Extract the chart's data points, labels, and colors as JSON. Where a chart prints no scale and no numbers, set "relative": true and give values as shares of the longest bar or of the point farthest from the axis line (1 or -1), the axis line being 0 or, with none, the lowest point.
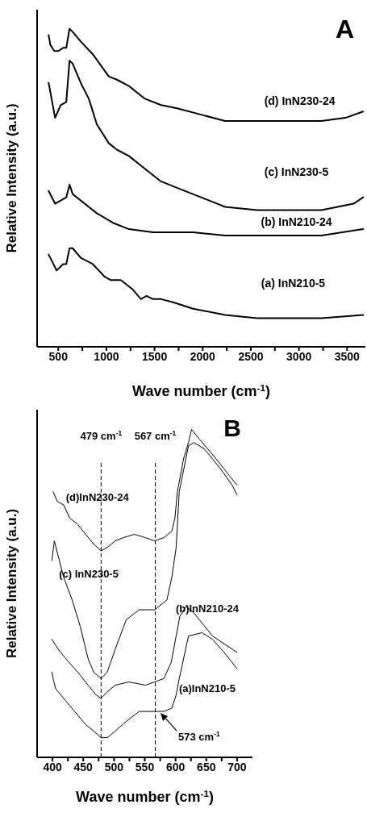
{
  "chart_data": [
    {
      "type": "line",
      "relative": true,
      "xlabel": "Wave number (cm$^{-1}$)",
      "ylabel": "Relative Intensity (a.u.)",
      "annotations": [
        "A"
      ],
      "xlim": [
        280,
        3690
      ],
      "xticks": [
        500,
        {
          "value": 750,
          "label": null
        },
        1000,
        {
          "value": 1250,
          "label": null
        },
        1500,
        {
          "value": 1750,
          "label": null
        },
        2000,
        {
          "value": 2250,
          "label": null
        },
        2500,
        {
          "value": 2750,
          "label": null
        },
        3000,
        {
          "value": 3250,
          "label": null
        },
        3500
      ],
      "series": [
        {
          "name": "(a) InN210-5",
          "color": "#000000",
          "x": [
            400,
            483,
            550,
            583,
            617,
            650,
            733,
            858,
            983,
            1042,
            1150,
            1275,
            1358,
            1417,
            1483,
            1567,
            1692,
            1900,
            2233,
            2567,
            3233,
            3667
          ],
          "values": [
            0.29,
            0.24,
            0.26,
            0.26,
            0.31,
            0.31,
            0.28,
            0.26,
            0.22,
            0.21,
            0.21,
            0.18,
            0.15,
            0.16,
            0.15,
            0.15,
            0.14,
            0.12,
            0.1,
            0.09,
            0.09,
            0.1
          ]
        },
        {
          "name": "(b) InN210-24",
          "color": "#000000",
          "x": [
            400,
            467,
            525,
            583,
            617,
            650,
            733,
            900,
            1067,
            1233,
            1483,
            1567,
            1650,
            1900,
            2233,
            2567,
            3233,
            3667
          ],
          "values": [
            0.49,
            0.45,
            0.46,
            0.47,
            0.51,
            0.48,
            0.46,
            0.42,
            0.39,
            0.37,
            0.36,
            0.36,
            0.36,
            0.36,
            0.35,
            0.35,
            0.35,
            0.37
          ]
        },
        {
          "name": "(c) InN230-5",
          "color": "#000000",
          "x": [
            400,
            467,
            525,
            583,
            617,
            650,
            733,
            817,
            900,
            1025,
            1108,
            1233,
            1400,
            1567,
            1733,
            1983,
            2233,
            2567,
            2900,
            3233,
            3567,
            3667
          ],
          "values": [
            0.83,
            0.72,
            0.76,
            0.77,
            0.9,
            0.89,
            0.83,
            0.78,
            0.7,
            0.64,
            0.62,
            0.6,
            0.56,
            0.52,
            0.5,
            0.47,
            0.44,
            0.43,
            0.43,
            0.43,
            0.45,
            0.47
          ]
        },
        {
          "name": "(d) InN230-24",
          "color": "#000000",
          "x": [
            400,
            417,
            458,
            500,
            550,
            583,
            617,
            650,
            733,
            858,
            1025,
            1108,
            1233,
            1400,
            1567,
            1733,
            1983,
            2233,
            2567,
            2900,
            3233,
            3483,
            3667
          ],
          "values": [
            0.98,
            0.95,
            0.93,
            0.93,
            0.94,
            0.94,
            1.0,
            0.99,
            0.96,
            0.92,
            0.85,
            0.84,
            0.82,
            0.78,
            0.76,
            0.75,
            0.73,
            0.71,
            0.71,
            0.71,
            0.71,
            0.72,
            0.74
          ]
        }
      ]
    },
    {
      "type": "line",
      "relative": true,
      "xlabel": "Wave number (cm$^{-1}$)",
      "ylabel": "Relative Intensity (a.u.)",
      "annotations": [
        "B",
        {
          "text": "573 cm$^{-1}$",
          "x": 573,
          "y": 0.14
        }
      ],
      "xlim": [
        375,
        725
      ],
      "xticks": [
        400,
        {
          "value": 425,
          "label": null
        },
        450,
        {
          "value": 475,
          "label": null
        },
        500,
        {
          "value": 525,
          "label": null
        },
        550,
        {
          "value": 575,
          "label": null
        },
        600,
        {
          "value": 625,
          "label": null
        },
        650,
        {
          "value": 675,
          "label": null
        },
        700
      ],
      "ref_lines": [
        {
          "axis": "x",
          "value": 479,
          "label": "479 cm$^{-1}$",
          "line_style": "dashed"
        },
        {
          "axis": "x",
          "value": 567,
          "label": "567 cm$^{-1}$",
          "line_style": "dashed"
        }
      ],
      "series": [
        {
          "name": "(a)InN210-5",
          "color": "#000000",
          "x": [
            399,
            401,
            405,
            418,
            436,
            454,
            467,
            479,
            489,
            502,
            520,
            541,
            566,
            581,
            594,
            601,
            606,
            621,
            643,
            660,
            679,
            700
          ],
          "values": [
            0.26,
            0.24,
            0.21,
            0.18,
            0.14,
            0.1,
            0.08,
            0.06,
            0.06,
            0.08,
            0.11,
            0.14,
            0.14,
            0.14,
            0.15,
            0.19,
            0.24,
            0.37,
            0.38,
            0.36,
            0.32,
            0.27
          ]
        },
        {
          "name": "(b)InN210-24",
          "color": "#000000",
          "x": [
            399,
            409,
            422,
            441,
            458,
            471,
            479,
            489,
            502,
            524,
            551,
            566,
            581,
            593,
            601,
            607,
            617,
            630,
            660,
            700
          ],
          "values": [
            0.36,
            0.33,
            0.3,
            0.26,
            0.22,
            0.19,
            0.18,
            0.2,
            0.22,
            0.23,
            0.22,
            0.23,
            0.24,
            0.29,
            0.37,
            0.43,
            0.46,
            0.44,
            0.37,
            0.32
          ]
        },
        {
          "name": "(c) InN230-5",
          "color": "#000000",
          "x": [
            399,
            403,
            418,
            432,
            445,
            458,
            467,
            479,
            489,
            502,
            520,
            541,
            566,
            586,
            594,
            601,
            606,
            621,
            630,
            647,
            673,
            692,
            700
          ],
          "values": [
            0.6,
            0.66,
            0.55,
            0.48,
            0.4,
            0.3,
            0.26,
            0.24,
            0.26,
            0.33,
            0.42,
            0.45,
            0.45,
            0.48,
            0.55,
            0.64,
            0.81,
            0.95,
            0.96,
            0.94,
            0.88,
            0.83,
            0.8
          ]
        },
        {
          "name": "(d)InN230-24",
          "color": "#000000",
          "x": [
            401,
            408,
            418,
            428,
            441,
            454,
            467,
            479,
            489,
            502,
            515,
            533,
            551,
            566,
            581,
            594,
            599,
            603,
            613,
            621,
            626,
            639,
            666,
            687,
            700
          ],
          "values": [
            0.81,
            0.78,
            0.77,
            0.73,
            0.71,
            0.68,
            0.65,
            0.63,
            0.64,
            0.66,
            0.67,
            0.68,
            0.67,
            0.66,
            0.67,
            0.69,
            0.73,
            0.81,
            0.91,
            0.96,
            1.0,
            0.97,
            0.91,
            0.86,
            0.83
          ]
        }
      ]
    }
  ]
}
